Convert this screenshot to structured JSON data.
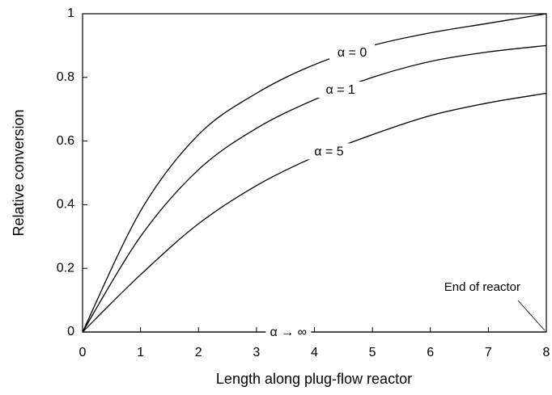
{
  "chart_data": {
    "type": "line",
    "x_label": "Length along plug-flow reactor",
    "y_label": "Relative conversion",
    "x": [
      0,
      1,
      2,
      3,
      4,
      5,
      6,
      7,
      8
    ],
    "series": [
      {
        "name": "α = 0",
        "color": "#000000",
        "values": [
          0,
          0.38,
          0.62,
          0.75,
          0.84,
          0.9,
          0.94,
          0.97,
          1.0
        ]
      },
      {
        "name": "α = 1",
        "color": "#000000",
        "values": [
          0,
          0.3,
          0.51,
          0.64,
          0.73,
          0.8,
          0.85,
          0.88,
          0.9
        ]
      },
      {
        "name": "α = 5",
        "color": "#000000",
        "values": [
          0,
          0.18,
          0.34,
          0.46,
          0.55,
          0.62,
          0.68,
          0.72,
          0.75
        ]
      },
      {
        "name": "α → ∞",
        "color": "#000000",
        "values": [
          0,
          0,
          0,
          0,
          0,
          0,
          0,
          0,
          0
        ]
      }
    ],
    "annotation": "End of reactor",
    "xlim": [
      0,
      8
    ],
    "xticks": [
      0,
      1,
      2,
      3,
      4,
      5,
      6,
      7,
      8
    ],
    "ylim": [
      0,
      1
    ],
    "yticks": [
      0,
      0.2,
      0.4,
      0.6,
      0.8,
      1
    ],
    "grid": false
  }
}
